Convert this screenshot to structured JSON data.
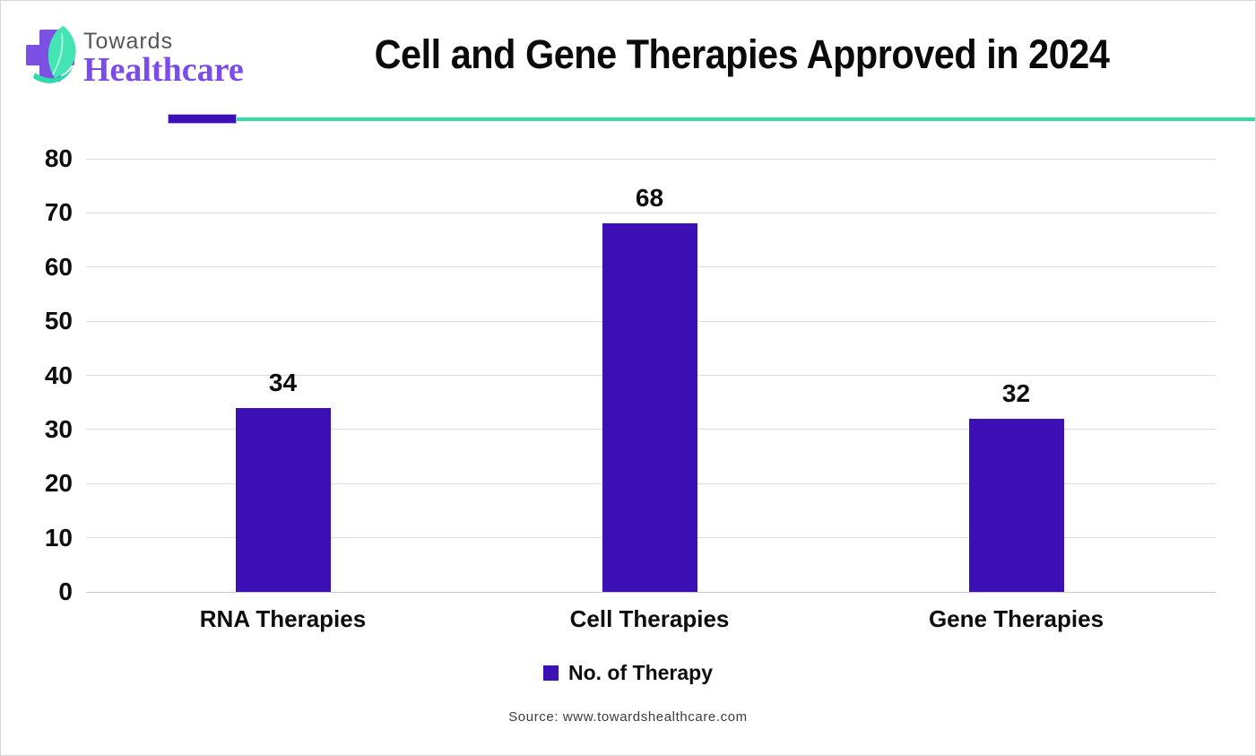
{
  "logo": {
    "towards": "Towards",
    "healthcare": "Healthcare",
    "cross_color": "#7b50e3",
    "leaf_color": "#43e5b4",
    "leaf_swoosh_color": "#2fd9a8"
  },
  "header": {
    "title": "Cell and Gene Therapies Approved in 2024"
  },
  "divider": {
    "purple": "#3c10b5",
    "teal": "#35dda5"
  },
  "chart_data": {
    "type": "bar",
    "title": "Cell and Gene Therapies Approved in 2024",
    "categories": [
      "RNA Therapies",
      "Cell Therapies",
      "Gene Therapies"
    ],
    "series": [
      {
        "name": "No. of Therapy",
        "values": [
          34,
          68,
          32
        ]
      }
    ],
    "xlabel": "",
    "ylabel": "",
    "ylim": [
      0,
      80
    ],
    "yticks": [
      0,
      10,
      20,
      30,
      40,
      50,
      60,
      70,
      80
    ],
    "bar_color": "#3c10b5",
    "grid": true,
    "legend_position": "bottom"
  },
  "legend": {
    "label": "No. of Therapy",
    "color": "#3c10b5"
  },
  "footer": {
    "source": "Source: www.towardshealthcare.com"
  }
}
